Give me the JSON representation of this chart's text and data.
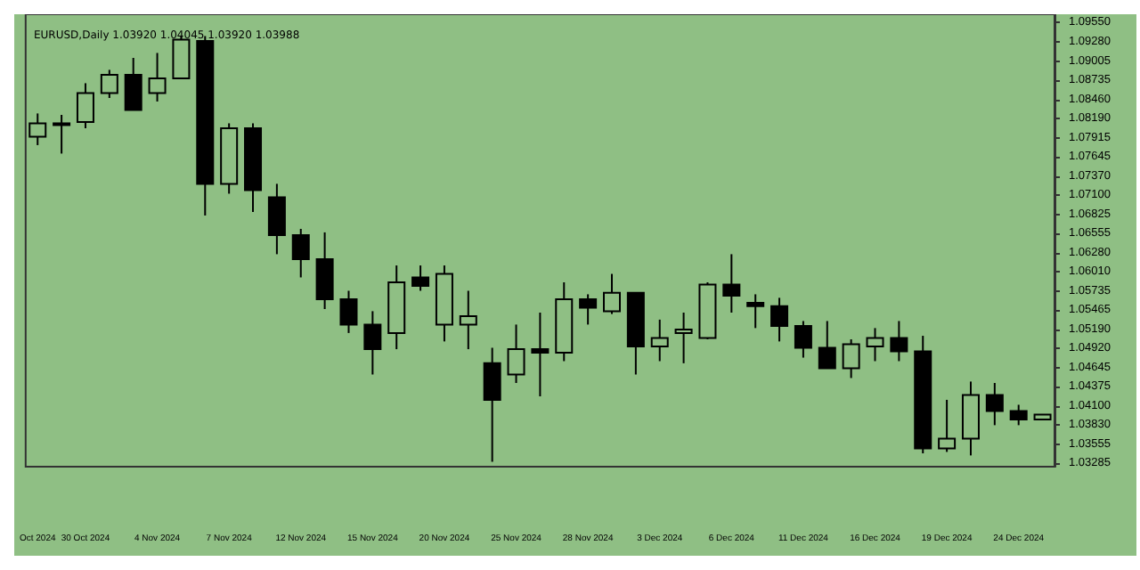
{
  "chart_data": {
    "type": "candlestick",
    "title": "EURUSD,Daily 1.03920 1.04045 1.03920 1.03988",
    "categories": [
      "Oct 2024",
      null,
      "30 Oct 2024",
      null,
      null,
      "4 Nov 2024",
      null,
      null,
      "7 Nov 2024",
      null,
      null,
      "12 Nov 2024",
      null,
      null,
      "15 Nov 2024",
      null,
      null,
      "20 Nov 2024",
      null,
      null,
      "25 Nov 2024",
      null,
      null,
      "28 Nov 2024",
      null,
      null,
      "3 Dec 2024",
      null,
      null,
      "6 Dec 2024",
      null,
      null,
      "11 Dec 2024",
      null,
      null,
      "16 Dec 2024",
      null,
      null,
      "19 Dec 2024",
      null,
      null,
      "24 Dec 2024",
      null
    ],
    "ohlc": [
      [
        1.0793,
        1.0826,
        1.0781,
        1.0812
      ],
      [
        1.081,
        1.0824,
        1.0769,
        1.0812
      ],
      [
        1.0814,
        1.0869,
        1.0805,
        1.0855
      ],
      [
        1.0855,
        1.0888,
        1.0848,
        1.0881
      ],
      [
        1.0881,
        1.0905,
        1.0831,
        1.0831
      ],
      [
        1.0855,
        1.0912,
        1.0843,
        1.0876
      ],
      [
        1.0876,
        1.0936,
        1.0876,
        1.0931
      ],
      [
        1.0929,
        1.0936,
        1.0681,
        1.0726
      ],
      [
        1.0726,
        1.0812,
        1.0712,
        1.0805
      ],
      [
        1.0805,
        1.0812,
        1.0686,
        1.0717
      ],
      [
        1.0707,
        1.0726,
        1.0626,
        1.0653
      ],
      [
        1.0653,
        1.0662,
        1.0593,
        1.0619
      ],
      [
        1.0619,
        1.0657,
        1.0548,
        1.0562
      ],
      [
        1.0562,
        1.0574,
        1.0514,
        1.0526
      ],
      [
        1.0526,
        1.0545,
        1.0455,
        1.0491
      ],
      [
        1.0514,
        1.061,
        1.0491,
        1.0586
      ],
      [
        1.0593,
        1.061,
        1.0574,
        1.0581
      ],
      [
        1.0526,
        1.061,
        1.0502,
        1.0598
      ],
      [
        1.0526,
        1.0574,
        1.0491,
        1.0538
      ],
      [
        1.0471,
        1.0493,
        1.0331,
        1.0419
      ],
      [
        1.0455,
        1.0526,
        1.0443,
        1.0491
      ],
      [
        1.0491,
        1.0543,
        1.0424,
        1.0486
      ],
      [
        1.0486,
        1.0586,
        1.0474,
        1.0562
      ],
      [
        1.0562,
        1.0569,
        1.0526,
        1.055
      ],
      [
        1.0545,
        1.0598,
        1.0541,
        1.0571
      ],
      [
        1.0571,
        1.0571,
        1.0455,
        1.0495
      ],
      [
        1.0495,
        1.0533,
        1.0474,
        1.0507
      ],
      [
        1.0514,
        1.0543,
        1.0471,
        1.0519
      ],
      [
        1.0507,
        1.0586,
        1.0505,
        1.0583
      ],
      [
        1.0583,
        1.0626,
        1.0543,
        1.0567
      ],
      [
        1.0557,
        1.0569,
        1.0521,
        1.0552
      ],
      [
        1.0552,
        1.0564,
        1.0502,
        1.0524
      ],
      [
        1.0524,
        1.0531,
        1.0479,
        1.0493
      ],
      [
        1.0493,
        1.0531,
        1.0464,
        1.0464
      ],
      [
        1.0464,
        1.0505,
        1.045,
        1.0498
      ],
      [
        1.0495,
        1.0521,
        1.0474,
        1.0507
      ],
      [
        1.0507,
        1.0531,
        1.0474,
        1.0488
      ],
      [
        1.0488,
        1.051,
        1.0343,
        1.035
      ],
      [
        1.035,
        1.0419,
        1.0345,
        1.0364
      ],
      [
        1.0364,
        1.0445,
        1.034,
        1.0426
      ],
      [
        1.0426,
        1.0443,
        1.0383,
        1.0403
      ],
      [
        1.0403,
        1.0412,
        1.0383,
        1.0391
      ],
      [
        1.0391,
        1.0398,
        1.0391,
        1.0398
      ]
    ],
    "ylim": [
      1.0324,
      1.0967
    ],
    "yticks": [
      {
        "value": 1.03285,
        "label": "1.03285"
      },
      {
        "value": 1.03555,
        "label": "1.03555"
      },
      {
        "value": 1.0383,
        "label": "1.03830"
      },
      {
        "value": 1.041,
        "label": "1.04100"
      },
      {
        "value": 1.04375,
        "label": "1.04375"
      },
      {
        "value": 1.04645,
        "label": "1.04645"
      },
      {
        "value": 1.0492,
        "label": "1.04920"
      },
      {
        "value": 1.0519,
        "label": "1.05190"
      },
      {
        "value": 1.05465,
        "label": "1.05465"
      },
      {
        "value": 1.05735,
        "label": "1.05735"
      },
      {
        "value": 1.0601,
        "label": "1.06010"
      },
      {
        "value": 1.0628,
        "label": "1.06280"
      },
      {
        "value": 1.06555,
        "label": "1.06555"
      },
      {
        "value": 1.06825,
        "label": "1.06825"
      },
      {
        "value": 1.071,
        "label": "1.07100"
      },
      {
        "value": 1.0737,
        "label": "1.07370"
      },
      {
        "value": 1.07645,
        "label": "1.07645"
      },
      {
        "value": 1.07915,
        "label": "1.07915"
      },
      {
        "value": 1.0819,
        "label": "1.08190"
      },
      {
        "value": 1.0846,
        "label": "1.08460"
      },
      {
        "value": 1.08735,
        "label": "1.08735"
      },
      {
        "value": 1.09005,
        "label": "1.09005"
      },
      {
        "value": 1.0928,
        "label": "1.09280"
      },
      {
        "value": 1.0955,
        "label": "1.09550"
      }
    ],
    "grid": false
  }
}
